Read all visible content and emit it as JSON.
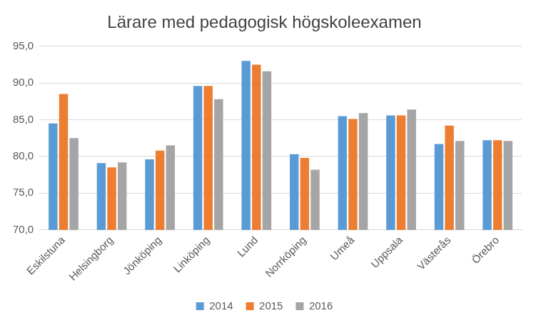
{
  "chart_data": {
    "type": "bar",
    "title": "Lärare med pedagogisk högskoleexamen",
    "categories": [
      "Eskilstuna",
      "Helsingborg",
      "Jönköping",
      "Linköping",
      "Lund",
      "Norrköping",
      "Umeå",
      "Uppsala",
      "Västerås",
      "Örebro"
    ],
    "series": [
      {
        "name": "2014",
        "color": "#5b9bd5",
        "values": [
          84.5,
          79.1,
          79.6,
          89.6,
          93.0,
          80.3,
          85.5,
          85.6,
          81.7,
          82.2
        ]
      },
      {
        "name": "2015",
        "color": "#ed7d31",
        "values": [
          88.5,
          78.5,
          80.8,
          89.6,
          92.5,
          79.8,
          85.1,
          85.6,
          84.2,
          82.2
        ]
      },
      {
        "name": "2016",
        "color": "#a5a5a5",
        "values": [
          82.5,
          79.2,
          81.5,
          87.8,
          91.6,
          78.2,
          85.9,
          86.4,
          82.1,
          82.1
        ]
      }
    ],
    "ylim": [
      70,
      95
    ],
    "yticks": [
      {
        "value": 70,
        "label": "70,0"
      },
      {
        "value": 75,
        "label": "75,0"
      },
      {
        "value": 80,
        "label": "80,0"
      },
      {
        "value": 85,
        "label": "85,0"
      },
      {
        "value": 90,
        "label": "90,0"
      },
      {
        "value": 95,
        "label": "95,0"
      }
    ],
    "grid": true,
    "legend": "bottom"
  }
}
